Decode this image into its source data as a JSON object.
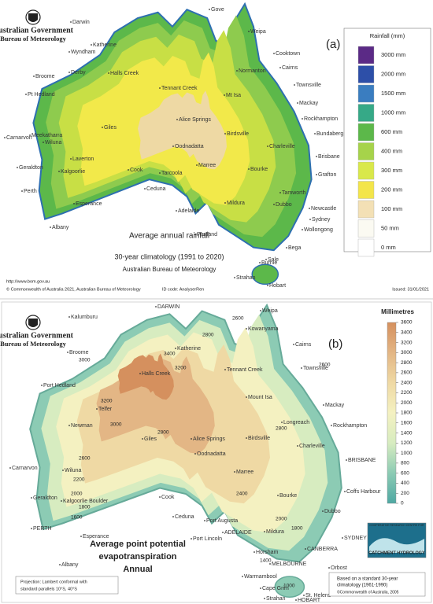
{
  "panel_a": {
    "label": "(a)",
    "org": [
      "Australian Government",
      "Bureau of Meteorology"
    ],
    "title": [
      "Average annual rainfall",
      "30-year climatology (1991 to 2020)",
      "Australian Bureau of Meteorology"
    ],
    "legend": {
      "title": "Rainfall (mm)",
      "items": [
        {
          "label": "3000 mm",
          "color": "#5b2a86"
        },
        {
          "label": "2000 mm",
          "color": "#2d4fa8"
        },
        {
          "label": "1500 mm",
          "color": "#3a7dc0"
        },
        {
          "label": "1000 mm",
          "color": "#36a987"
        },
        {
          "label": "600 mm",
          "color": "#5cb84a"
        },
        {
          "label": "400 mm",
          "color": "#a6d34a"
        },
        {
          "label": "300 mm",
          "color": "#d9e84a"
        },
        {
          "label": "200 mm",
          "color": "#f3e54a"
        },
        {
          "label": "100 mm",
          "color": "#f3e0b5"
        },
        {
          "label": "50 mm",
          "color": "#fbfaf2"
        },
        {
          "label": "0 mm",
          "color": "#ffffff"
        }
      ]
    },
    "places": [
      "Darwin",
      "Gove",
      "Weipa",
      "Cooktown",
      "Cairns",
      "Wyndham",
      "Katherine",
      "Broome",
      "Derby",
      "Halls Creek",
      "Pt Hedland",
      "Tennant Creek",
      "Normanton",
      "Mt Isa",
      "Townsville",
      "Mackay",
      "Carnarvon",
      "Alice Springs",
      "Rockhampton",
      "Bundaberg",
      "Meekatharra",
      "Wiluna",
      "Giles",
      "Oodnadatta",
      "Birdsville",
      "Charleville",
      "Brisbane",
      "Laverton",
      "Geraldton",
      "Kalgoorlie",
      "Cook",
      "Tarcoola",
      "Marree",
      "Bourke",
      "Grafton",
      "Perth",
      "Ceduna",
      "Tamworth",
      "Dubbo",
      "Newcastle",
      "Sydney",
      "Wollongong",
      "Esperance",
      "Albany",
      "Adelaide",
      "Mildura",
      "Portland",
      "Bega",
      "Sale",
      "Burnie",
      "Strahan",
      "Hobart"
    ],
    "url": "http://www.bom.gov.au",
    "footer": {
      "copyright": "© Commonwealth of Australia 2021, Australian Bureau of Meteorology",
      "id_code": "ID code: AnalyserRen",
      "issued": "Issued: 31/01/2021"
    }
  },
  "panel_b": {
    "label": "(b)",
    "org": [
      "Australian Government",
      "Bureau of Meteorology"
    ],
    "title": [
      "Average point potential",
      "evapotranspiration",
      "Annual"
    ],
    "legend": {
      "title": "Millimetres",
      "lim": [
        0,
        3600
      ],
      "ticks": [
        3600,
        3400,
        3200,
        3000,
        2800,
        2600,
        2400,
        2200,
        2000,
        1800,
        1600,
        1400,
        1200,
        1000,
        800,
        600,
        400,
        200,
        0
      ],
      "colors": [
        "#4fa8a3",
        "#8ccbb4",
        "#d7ecc0",
        "#f4f1c1",
        "#efd9a4",
        "#e3b685",
        "#d5905e"
      ]
    },
    "places": [
      "DARWIN",
      "Kalumburu",
      "Weipa",
      "Kowanyama",
      "Cairns",
      "Broome",
      "Halls Creek",
      "Katherine",
      "Tennant Creek",
      "Townsville",
      "Port Hedland",
      "Mount Isa",
      "Telfer",
      "Mackay",
      "Longreach",
      "Newman",
      "Giles",
      "Alice Springs",
      "Rockhampton",
      "Birdsville",
      "Charleville",
      "Carnarvon",
      "Wiluna",
      "Oodnadatta",
      "BRISBANE",
      "Marree",
      "Geraldton",
      "Cook",
      "Bourke",
      "Kalgoorlie Boulder",
      "Coffs Harbour",
      "PERTH",
      "Ceduna",
      "Port Augusta",
      "Dubbo",
      "Esperance",
      "Port Lincoln",
      "ADELAIDE",
      "Mildura",
      "CANBERRA",
      "SYDNEY",
      "Albany",
      "Horsham",
      "MELBOURNE",
      "Orbost",
      "Warrnambool",
      "Cape Grim",
      "St. Helens",
      "Strahan",
      "HOBART"
    ],
    "contours": [
      2600,
      2800,
      3400,
      3000,
      3200,
      3200,
      3000,
      2800,
      2600,
      2800,
      2600,
      2400,
      2200,
      2000,
      1800,
      1600,
      2000,
      1800,
      1400,
      1000
    ],
    "projection": [
      "Projection: Lambert conformal with",
      "standard parallels 10°S, 40°S"
    ],
    "basis": [
      "Based on a standard 30-year",
      "climatology (1961-1990)",
      "©Commonwealth of Australia, 2005"
    ],
    "logo": [
      "COOPERATIVE RESEARCH CENTRE FOR",
      "CATCHMENT HYDROLOGY"
    ]
  }
}
